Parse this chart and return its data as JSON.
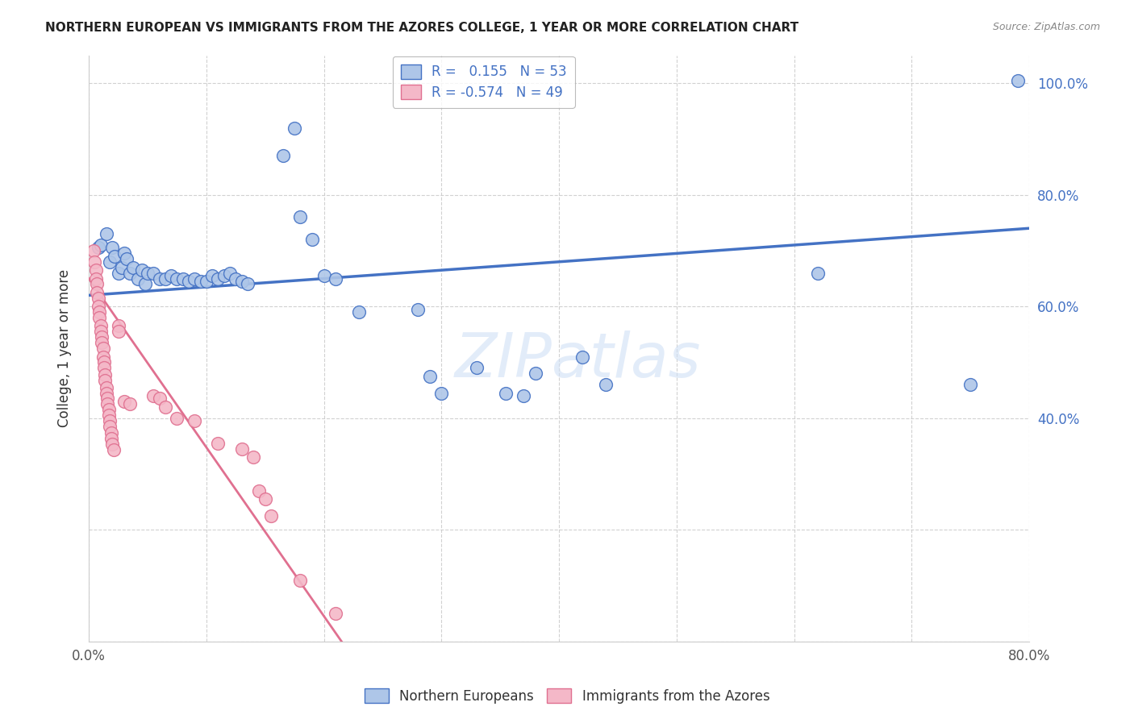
{
  "title": "NORTHERN EUROPEAN VS IMMIGRANTS FROM THE AZORES COLLEGE, 1 YEAR OR MORE CORRELATION CHART",
  "source": "Source: ZipAtlas.com",
  "ylabel": "College, 1 year or more",
  "xlim": [
    0.0,
    0.8
  ],
  "ylim": [
    0.0,
    1.05
  ],
  "x_tick_positions": [
    0.0,
    0.1,
    0.2,
    0.3,
    0.4,
    0.5,
    0.6,
    0.7,
    0.8
  ],
  "x_tick_labels": [
    "0.0%",
    "",
    "",
    "",
    "",
    "",
    "",
    "",
    "80.0%"
  ],
  "y_tick_positions": [
    0.0,
    0.2,
    0.4,
    0.6,
    0.8,
    1.0
  ],
  "y_tick_labels_left": [
    "",
    "",
    "",
    "",
    "",
    ""
  ],
  "y_tick_labels_right": [
    "",
    "",
    "40.0%",
    "60.0%",
    "80.0%",
    "100.0%"
  ],
  "blue_color": "#aec6e8",
  "blue_edge_color": "#4472c4",
  "pink_color": "#f4b8c8",
  "pink_edge_color": "#e07090",
  "watermark": "ZIPatlas",
  "blue_points": [
    [
      0.008,
      0.705
    ],
    [
      0.01,
      0.71
    ],
    [
      0.015,
      0.73
    ],
    [
      0.018,
      0.68
    ],
    [
      0.02,
      0.705
    ],
    [
      0.022,
      0.69
    ],
    [
      0.025,
      0.66
    ],
    [
      0.028,
      0.67
    ],
    [
      0.03,
      0.695
    ],
    [
      0.032,
      0.685
    ],
    [
      0.035,
      0.66
    ],
    [
      0.038,
      0.67
    ],
    [
      0.042,
      0.65
    ],
    [
      0.045,
      0.665
    ],
    [
      0.048,
      0.64
    ],
    [
      0.05,
      0.66
    ],
    [
      0.055,
      0.66
    ],
    [
      0.06,
      0.65
    ],
    [
      0.065,
      0.65
    ],
    [
      0.07,
      0.655
    ],
    [
      0.075,
      0.65
    ],
    [
      0.08,
      0.65
    ],
    [
      0.085,
      0.645
    ],
    [
      0.09,
      0.65
    ],
    [
      0.095,
      0.645
    ],
    [
      0.1,
      0.645
    ],
    [
      0.105,
      0.655
    ],
    [
      0.11,
      0.65
    ],
    [
      0.115,
      0.655
    ],
    [
      0.12,
      0.66
    ],
    [
      0.125,
      0.65
    ],
    [
      0.13,
      0.645
    ],
    [
      0.135,
      0.64
    ],
    [
      0.165,
      0.87
    ],
    [
      0.175,
      0.92
    ],
    [
      0.18,
      0.76
    ],
    [
      0.19,
      0.72
    ],
    [
      0.2,
      0.655
    ],
    [
      0.21,
      0.65
    ],
    [
      0.23,
      0.59
    ],
    [
      0.28,
      0.595
    ],
    [
      0.29,
      0.475
    ],
    [
      0.3,
      0.445
    ],
    [
      0.33,
      0.49
    ],
    [
      0.355,
      0.445
    ],
    [
      0.37,
      0.44
    ],
    [
      0.38,
      0.48
    ],
    [
      0.42,
      0.51
    ],
    [
      0.44,
      0.46
    ],
    [
      0.62,
      0.66
    ],
    [
      0.75,
      0.46
    ],
    [
      0.79,
      1.005
    ]
  ],
  "pink_points": [
    [
      0.004,
      0.7
    ],
    [
      0.005,
      0.68
    ],
    [
      0.006,
      0.665
    ],
    [
      0.006,
      0.65
    ],
    [
      0.007,
      0.64
    ],
    [
      0.007,
      0.625
    ],
    [
      0.008,
      0.615
    ],
    [
      0.008,
      0.6
    ],
    [
      0.009,
      0.59
    ],
    [
      0.009,
      0.58
    ],
    [
      0.01,
      0.565
    ],
    [
      0.01,
      0.555
    ],
    [
      0.011,
      0.545
    ],
    [
      0.011,
      0.535
    ],
    [
      0.012,
      0.525
    ],
    [
      0.012,
      0.51
    ],
    [
      0.013,
      0.5
    ],
    [
      0.013,
      0.49
    ],
    [
      0.014,
      0.478
    ],
    [
      0.014,
      0.468
    ],
    [
      0.015,
      0.455
    ],
    [
      0.015,
      0.445
    ],
    [
      0.016,
      0.435
    ],
    [
      0.016,
      0.425
    ],
    [
      0.017,
      0.415
    ],
    [
      0.017,
      0.405
    ],
    [
      0.018,
      0.395
    ],
    [
      0.018,
      0.385
    ],
    [
      0.019,
      0.374
    ],
    [
      0.019,
      0.364
    ],
    [
      0.02,
      0.354
    ],
    [
      0.021,
      0.344
    ],
    [
      0.025,
      0.565
    ],
    [
      0.025,
      0.555
    ],
    [
      0.03,
      0.43
    ],
    [
      0.035,
      0.425
    ],
    [
      0.055,
      0.44
    ],
    [
      0.06,
      0.435
    ],
    [
      0.065,
      0.42
    ],
    [
      0.075,
      0.4
    ],
    [
      0.09,
      0.395
    ],
    [
      0.11,
      0.355
    ],
    [
      0.13,
      0.345
    ],
    [
      0.14,
      0.33
    ],
    [
      0.145,
      0.27
    ],
    [
      0.15,
      0.255
    ],
    [
      0.155,
      0.225
    ],
    [
      0.18,
      0.11
    ],
    [
      0.21,
      0.05
    ]
  ],
  "blue_line_x": [
    0.0,
    0.8
  ],
  "blue_line_y": [
    0.62,
    0.74
  ],
  "pink_line_x": [
    0.0,
    0.215
  ],
  "pink_line_y": [
    0.65,
    0.0
  ]
}
